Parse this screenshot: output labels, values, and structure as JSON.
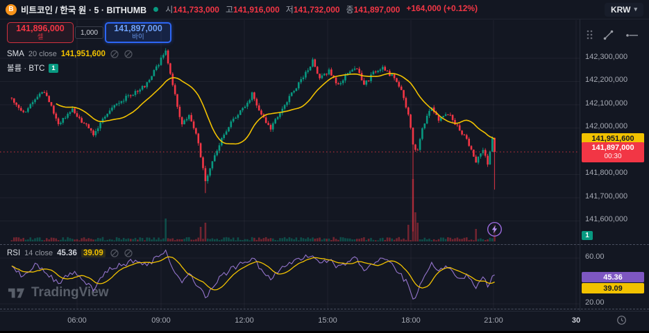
{
  "colors": {
    "up": "#089981",
    "down": "#f23645",
    "sma": "#f2c200",
    "rsi_line": "#9575cd",
    "rsi_ma": "#f2c200",
    "buy_blue": "#2962ff",
    "sell_red": "#f23645",
    "badge_purple": "#7e57c2",
    "badge_teal": "#089981"
  },
  "topbar": {
    "symbol_title": "비트코인 / 한국 원 · 5 · BITHUMB",
    "ohlc": {
      "open_label": "시",
      "open": "141,733,000",
      "high_label": "고",
      "high": "141,916,000",
      "low_label": "저",
      "low": "141,732,000",
      "close_label": "종",
      "close": "141,897,000",
      "change": "+164,000 (+0.12%)"
    },
    "currency": "KRW"
  },
  "order_panel": {
    "sell_price": "141,896,000",
    "sell_label": "셀",
    "spread": "1,000",
    "buy_price": "141,897,000",
    "buy_label": "바이"
  },
  "legends": {
    "sma": {
      "name": "SMA",
      "params": "20 close",
      "value": "141,951,600"
    },
    "volume": {
      "name": "볼륨 · BTC",
      "badge": "1"
    },
    "rsi": {
      "name": "RSI",
      "params": "14 close",
      "value": "45.36",
      "ma_value": "39.09"
    }
  },
  "price_scale": {
    "ticks": [
      "142,300,000",
      "142,200,000",
      "142,100,000",
      "142,000,000",
      "141,800,000",
      "141,700,000",
      "141,600,000"
    ],
    "sma_label": "141,951,600",
    "last_label": "141,897,000",
    "countdown": "00:30",
    "volume_badge": "1"
  },
  "rsi_scale": {
    "tick_top": "60.00",
    "tick_bottom": "20.00",
    "rsi_label": "45.36",
    "ma_label": "39.09"
  },
  "time_axis": {
    "labels": [
      "06:00",
      "09:00",
      "12:00",
      "15:00",
      "18:00",
      "21:00",
      "30"
    ]
  },
  "watermark": "TradingView",
  "chart_data": {
    "type": "candlestick",
    "title": "비트코인 / 한국 원 · 5 · BITHUMB",
    "interval_minutes": 5,
    "open": 141733000,
    "high": 141916000,
    "low": 141732000,
    "last_price": 141897000,
    "change_abs": 164000,
    "change_pct": 0.12,
    "sma_period": 20,
    "sma_value": 141951600,
    "rsi_period": 14,
    "rsi_value": 45.36,
    "rsi_ma_value": 39.09,
    "price_ticks": [
      142300000,
      142200000,
      142100000,
      142000000,
      141800000,
      141700000,
      141600000
    ],
    "rsi_ticks": [
      60,
      20
    ],
    "ylim_main": [
      141550000,
      142360000
    ],
    "ylim_rsi": [
      15,
      70
    ],
    "candle_count": 208,
    "anchors": [
      [
        0,
        142120000
      ],
      [
        5,
        142065000
      ],
      [
        10,
        142130000
      ],
      [
        14,
        142160000
      ],
      [
        20,
        142020000
      ],
      [
        26,
        142080000
      ],
      [
        30,
        142030000
      ],
      [
        35,
        141975000
      ],
      [
        40,
        142050000
      ],
      [
        46,
        142110000
      ],
      [
        52,
        142150000
      ],
      [
        58,
        142190000
      ],
      [
        62,
        142260000
      ],
      [
        66,
        142330000
      ],
      [
        69,
        142180000
      ],
      [
        73,
        142010000
      ],
      [
        76,
        142060000
      ],
      [
        79,
        141980000
      ],
      [
        81,
        141880000
      ],
      [
        83,
        141770000
      ],
      [
        86,
        141850000
      ],
      [
        90,
        141950000
      ],
      [
        95,
        142040000
      ],
      [
        100,
        142090000
      ],
      [
        103,
        142145000
      ],
      [
        107,
        142060000
      ],
      [
        111,
        142000000
      ],
      [
        115,
        142070000
      ],
      [
        120,
        142150000
      ],
      [
        125,
        142220000
      ],
      [
        129,
        142290000
      ],
      [
        132,
        142210000
      ],
      [
        136,
        142245000
      ],
      [
        140,
        142185000
      ],
      [
        144,
        142235000
      ],
      [
        148,
        142255000
      ],
      [
        151,
        142185000
      ],
      [
        155,
        142235000
      ],
      [
        159,
        142255000
      ],
      [
        163,
        142225000
      ],
      [
        167,
        142160000
      ],
      [
        170,
        142060000
      ],
      [
        172,
        141930000
      ],
      [
        174,
        141900000
      ],
      [
        176,
        142000000
      ],
      [
        180,
        142090000
      ],
      [
        183,
        142035000
      ],
      [
        186,
        142065000
      ],
      [
        189,
        142040000
      ],
      [
        192,
        141985000
      ],
      [
        195,
        141950000
      ],
      [
        199,
        141855000
      ],
      [
        202,
        141905000
      ],
      [
        204,
        141845000
      ],
      [
        206,
        141960000
      ],
      [
        207,
        141897000
      ]
    ],
    "wick_spikes": [
      {
        "i": 83,
        "low": 141720000
      },
      {
        "i": 172,
        "low": 141555000
      },
      {
        "i": 207,
        "low": 141735000
      }
    ],
    "volume_spikes": [
      {
        "i": 66,
        "v": 22
      },
      {
        "i": 81,
        "v": 14
      },
      {
        "i": 83,
        "v": 18
      },
      {
        "i": 170,
        "v": 16
      },
      {
        "i": 172,
        "v": 60
      },
      {
        "i": 173,
        "v": 28
      },
      {
        "i": 174,
        "v": 18
      },
      {
        "i": 199,
        "v": 12
      },
      {
        "i": 207,
        "v": 16
      }
    ],
    "rsi_anchors": [
      [
        0,
        52
      ],
      [
        5,
        44
      ],
      [
        10,
        55
      ],
      [
        15,
        47
      ],
      [
        20,
        38
      ],
      [
        26,
        48
      ],
      [
        30,
        42
      ],
      [
        35,
        33
      ],
      [
        40,
        48
      ],
      [
        46,
        54
      ],
      [
        52,
        57
      ],
      [
        58,
        54
      ],
      [
        62,
        60
      ],
      [
        66,
        66
      ],
      [
        69,
        50
      ],
      [
        73,
        40
      ],
      [
        76,
        46
      ],
      [
        79,
        38
      ],
      [
        81,
        32
      ],
      [
        83,
        25
      ],
      [
        86,
        36
      ],
      [
        90,
        44
      ],
      [
        95,
        52
      ],
      [
        100,
        56
      ],
      [
        103,
        60
      ],
      [
        107,
        50
      ],
      [
        111,
        43
      ],
      [
        115,
        50
      ],
      [
        120,
        56
      ],
      [
        125,
        60
      ],
      [
        129,
        64
      ],
      [
        132,
        54
      ],
      [
        136,
        58
      ],
      [
        140,
        52
      ],
      [
        144,
        57
      ],
      [
        148,
        60
      ],
      [
        151,
        50
      ],
      [
        155,
        56
      ],
      [
        159,
        59
      ],
      [
        163,
        54
      ],
      [
        167,
        45
      ],
      [
        170,
        36
      ],
      [
        172,
        22
      ],
      [
        174,
        30
      ],
      [
        176,
        42
      ],
      [
        180,
        56
      ],
      [
        183,
        48
      ],
      [
        186,
        52
      ],
      [
        189,
        47
      ],
      [
        192,
        40
      ],
      [
        195,
        44
      ],
      [
        199,
        34
      ],
      [
        202,
        45
      ],
      [
        204,
        37
      ],
      [
        206,
        44
      ],
      [
        207,
        45.36
      ]
    ]
  }
}
